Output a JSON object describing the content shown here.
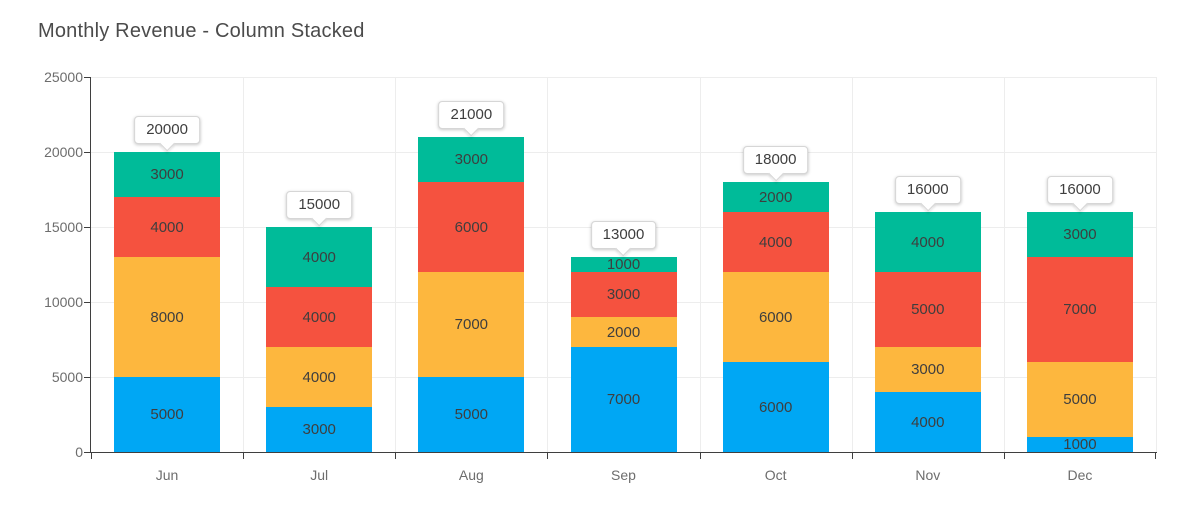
{
  "title": "Monthly Revenue - Column Stacked",
  "colors": {
    "blue": "#00a7f4",
    "orange": "#fdb73e",
    "red": "#f5523f",
    "green": "#00bb99",
    "grid": "#ededed",
    "axis": "#3f3f3f",
    "axis_text": "#6d6d6d",
    "segment_text": "#3e3e3e"
  },
  "chart_data": {
    "type": "bar",
    "stacked": true,
    "title": "Monthly Revenue - Column Stacked",
    "categories": [
      "Jun",
      "Jul",
      "Aug",
      "Sep",
      "Oct",
      "Nov",
      "Dec"
    ],
    "series": [
      {
        "name": "series-blue",
        "color": "#00a7f4",
        "values": [
          5000,
          3000,
          5000,
          7000,
          6000,
          4000,
          1000
        ]
      },
      {
        "name": "series-orange",
        "color": "#fdb73e",
        "values": [
          8000,
          4000,
          7000,
          2000,
          6000,
          3000,
          5000
        ]
      },
      {
        "name": "series-red",
        "color": "#f5523f",
        "values": [
          4000,
          4000,
          6000,
          3000,
          4000,
          5000,
          7000
        ]
      },
      {
        "name": "series-green",
        "color": "#00bb99",
        "values": [
          3000,
          4000,
          3000,
          1000,
          2000,
          4000,
          3000
        ]
      }
    ],
    "totals": [
      20000,
      15000,
      21000,
      13000,
      18000,
      16000,
      16000
    ],
    "xlabel": "",
    "ylabel": "",
    "ylim": [
      0,
      25000
    ],
    "yticks": [
      0,
      5000,
      10000,
      15000,
      20000,
      25000
    ],
    "grid": true,
    "legend": "none",
    "value_labels": "inside-segments",
    "total_labels": "callout-above-bar"
  }
}
